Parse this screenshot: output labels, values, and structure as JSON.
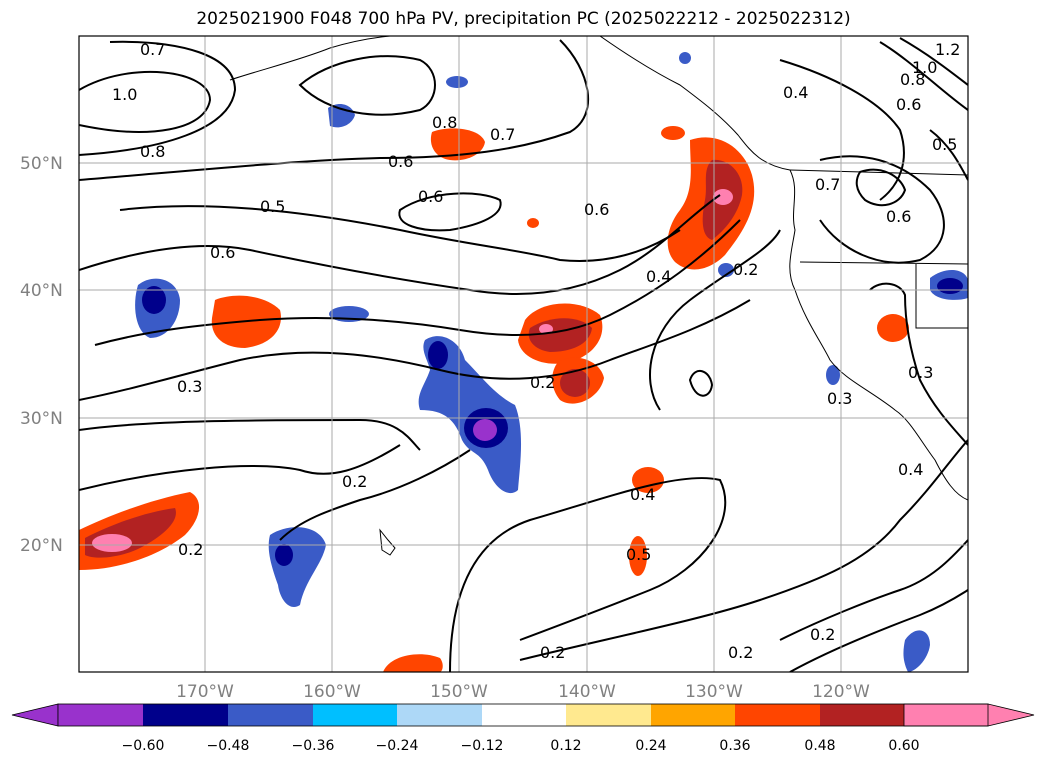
{
  "title": "2025021900 F048 700 hPa PV, precipitation PC (2025022212 - 2025022312)",
  "lat_labels": [
    "50°N",
    "40°N",
    "30°N",
    "20°N"
  ],
  "lon_labels": [
    "170°W",
    "160°W",
    "150°W",
    "140°W",
    "130°W",
    "120°W"
  ],
  "colorbar": {
    "colors": [
      "#9932cc",
      "#00008b",
      "#3a5bc7",
      "#00bfff",
      "#add8f7",
      "#ffffff",
      "#ffe98f",
      "#ffa500",
      "#ff4500",
      "#b22222",
      "#ff80b0"
    ],
    "tick_labels": [
      "−0.60",
      "−0.48",
      "−0.36",
      "−0.24",
      "−0.12",
      "0.12",
      "0.24",
      "0.36",
      "0.48",
      "0.60"
    ]
  },
  "contour_labels": [
    "0.7",
    "1.0",
    "0.8",
    "0.8",
    "0.7",
    "0.6",
    "0.5",
    "0.6",
    "0.6",
    "0.6",
    "0.4",
    "0.2",
    "0.3",
    "0.2",
    "0.2",
    "0.2",
    "0.2",
    "0.4",
    "0.5",
    "0.3",
    "0.4",
    "0.2",
    "0.2",
    "0.4",
    "0.6",
    "0.7",
    "0.5",
    "0.6",
    "0.8",
    "1.0",
    "1.2",
    "0.3"
  ]
}
